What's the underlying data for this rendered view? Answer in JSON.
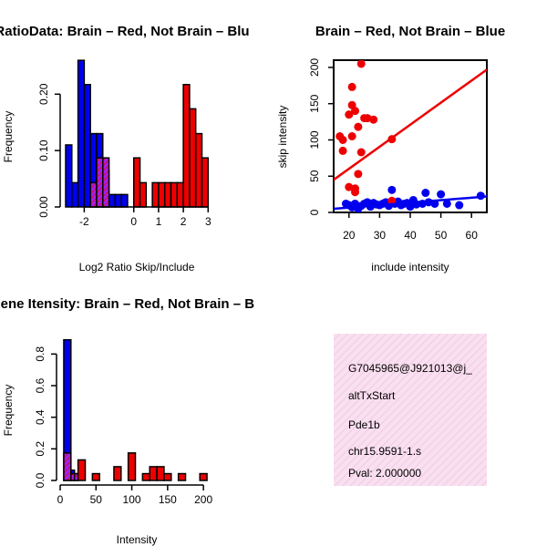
{
  "colors": {
    "brain": "#ee0000",
    "not_brain": "#0000ee",
    "overlap": "#a020f0",
    "info_bg": "#f9e0f0",
    "info_stripe": "#f2c9e2",
    "pval": "#aa0000"
  },
  "chart_data": [
    {
      "id": "ratio-hist",
      "type": "histogram",
      "title": "RatioData: Brain – Red, Not Brain – Blu",
      "xlabel": "Log2 Ratio Skip/Include",
      "ylabel": "Frequency",
      "xlim": [
        -2.75,
        3.1
      ],
      "ylim": [
        0,
        0.27
      ],
      "xticks": [
        -2,
        0,
        1,
        2,
        3
      ],
      "xtick_labels": [
        "-2",
        "0",
        "1",
        "2",
        "3"
      ],
      "yticks": [
        0.0,
        0.1,
        0.2
      ],
      "ytick_labels": [
        "0.00",
        "0.10",
        "0.20"
      ],
      "series": [
        {
          "name": "Not Brain",
          "color_key": "not_brain",
          "bins": [
            {
              "x0": -2.75,
              "x1": -2.5,
              "value": 0.11
            },
            {
              "x0": -2.5,
              "x1": -2.25,
              "value": 0.043
            },
            {
              "x0": -2.25,
              "x1": -2.0,
              "value": 0.26
            },
            {
              "x0": -2.0,
              "x1": -1.75,
              "value": 0.217
            },
            {
              "x0": -1.75,
              "x1": -1.5,
              "value": 0.13
            },
            {
              "x0": -1.5,
              "x1": -1.25,
              "value": 0.13
            },
            {
              "x0": -1.25,
              "x1": -1.0,
              "value": 0.065
            },
            {
              "x0": -1.0,
              "x1": -0.75,
              "value": 0.022
            },
            {
              "x0": -0.75,
              "x1": -0.5,
              "value": 0.022
            },
            {
              "x0": -0.5,
              "x1": -0.25,
              "value": 0.022
            }
          ]
        },
        {
          "name": "Brain",
          "color_key": "brain",
          "bins": [
            {
              "x0": -1.75,
              "x1": -1.5,
              "value": 0.043
            },
            {
              "x0": -1.5,
              "x1": -1.25,
              "value": 0.087
            },
            {
              "x0": -1.25,
              "x1": -1.0,
              "value": 0.087
            },
            {
              "x0": 0.0,
              "x1": 0.25,
              "value": 0.087
            },
            {
              "x0": 0.25,
              "x1": 0.5,
              "value": 0.043
            },
            {
              "x0": 0.75,
              "x1": 1.0,
              "value": 0.043
            },
            {
              "x0": 1.0,
              "x1": 1.25,
              "value": 0.043
            },
            {
              "x0": 1.25,
              "x1": 1.5,
              "value": 0.043
            },
            {
              "x0": 1.5,
              "x1": 1.75,
              "value": 0.043
            },
            {
              "x0": 1.75,
              "x1": 2.0,
              "value": 0.043
            },
            {
              "x0": 2.0,
              "x1": 2.25,
              "value": 0.217
            },
            {
              "x0": 2.25,
              "x1": 2.5,
              "value": 0.174
            },
            {
              "x0": 2.5,
              "x1": 2.75,
              "value": 0.13
            },
            {
              "x0": 2.75,
              "x1": 3.0,
              "value": 0.087
            }
          ]
        }
      ]
    },
    {
      "id": "scatter",
      "type": "scatter",
      "title": "Brain – Red, Not Brain – Blue",
      "xlabel": "include intensity",
      "ylabel": "skip intensity",
      "xlim": [
        15,
        65
      ],
      "ylim": [
        0,
        210
      ],
      "xticks": [
        20,
        30,
        40,
        50,
        60
      ],
      "yticks": [
        0,
        50,
        100,
        150,
        200
      ],
      "series": [
        {
          "name": "Brain",
          "color_key": "brain",
          "points": [
            [
              17,
              105
            ],
            [
              18,
              100
            ],
            [
              18,
              85
            ],
            [
              20,
              135
            ],
            [
              20,
              35
            ],
            [
              21,
              173
            ],
            [
              21,
              148
            ],
            [
              21,
              105
            ],
            [
              22,
              33
            ],
            [
              22,
              28
            ],
            [
              22,
              140
            ],
            [
              23,
              118
            ],
            [
              23,
              53
            ],
            [
              24,
              205
            ],
            [
              24,
              83
            ],
            [
              25,
              130
            ],
            [
              26,
              130
            ],
            [
              28,
              128
            ],
            [
              34,
              101
            ],
            [
              34,
              16
            ]
          ],
          "fit": {
            "x0": 15,
            "y0": 45,
            "x1": 65,
            "y1": 197
          }
        },
        {
          "name": "Not Brain",
          "color_key": "not_brain",
          "points": [
            [
              19,
              12
            ],
            [
              20,
              10
            ],
            [
              21,
              7
            ],
            [
              22,
              12
            ],
            [
              23,
              5
            ],
            [
              24,
              9
            ],
            [
              25,
              12
            ],
            [
              26,
              14
            ],
            [
              27,
              8
            ],
            [
              28,
              13
            ],
            [
              29,
              11
            ],
            [
              30,
              10
            ],
            [
              31,
              12
            ],
            [
              32,
              14
            ],
            [
              33,
              9
            ],
            [
              34,
              31
            ],
            [
              35,
              12
            ],
            [
              36,
              15
            ],
            [
              37,
              10
            ],
            [
              38,
              12
            ],
            [
              39,
              13
            ],
            [
              40,
              8
            ],
            [
              41,
              17
            ],
            [
              42,
              11
            ],
            [
              44,
              12
            ],
            [
              45,
              27
            ],
            [
              46,
              14
            ],
            [
              48,
              12
            ],
            [
              50,
              25
            ],
            [
              52,
              12
            ],
            [
              56,
              10
            ],
            [
              63,
              23
            ]
          ],
          "fit": {
            "x0": 15,
            "y0": 5,
            "x1": 65,
            "y1": 22
          }
        }
      ]
    },
    {
      "id": "intensity-hist",
      "type": "histogram",
      "title": "Gene Itensity: Brain – Red, Not Brain – B",
      "xlabel": "Intensity",
      "ylabel": "Frequency",
      "xlim": [
        0,
        210
      ],
      "ylim": [
        0,
        0.9
      ],
      "xticks": [
        0,
        50,
        100,
        150,
        200
      ],
      "xtick_labels": [
        "0",
        "50",
        "100",
        "150",
        "200"
      ],
      "yticks": [
        0.0,
        0.2,
        0.4,
        0.6,
        0.8
      ],
      "ytick_labels": [
        "0.0",
        "0.2",
        "0.4",
        "0.6",
        "0.8"
      ],
      "series": [
        {
          "name": "Not Brain",
          "color_key": "not_brain",
          "bins": [
            {
              "x0": 5,
              "x1": 15,
              "value": 0.89
            },
            {
              "x0": 15,
              "x1": 20,
              "value": 0.065
            },
            {
              "x0": 20,
              "x1": 25,
              "value": 0.043
            }
          ]
        },
        {
          "name": "Brain",
          "color_key": "brain",
          "bins": [
            {
              "x0": 5,
              "x1": 15,
              "value": 0.174
            },
            {
              "x0": 15,
              "x1": 20,
              "value": 0.043
            },
            {
              "x0": 20,
              "x1": 25,
              "value": 0.043
            },
            {
              "x0": 25,
              "x1": 35,
              "value": 0.13
            },
            {
              "x0": 45,
              "x1": 55,
              "value": 0.043
            },
            {
              "x0": 75,
              "x1": 85,
              "value": 0.087
            },
            {
              "x0": 95,
              "x1": 105,
              "value": 0.174
            },
            {
              "x0": 115,
              "x1": 125,
              "value": 0.043
            },
            {
              "x0": 125,
              "x1": 135,
              "value": 0.087
            },
            {
              "x0": 135,
              "x1": 145,
              "value": 0.087
            },
            {
              "x0": 145,
              "x1": 155,
              "value": 0.043
            },
            {
              "x0": 165,
              "x1": 175,
              "value": 0.043
            },
            {
              "x0": 195,
              "x1": 205,
              "value": 0.043
            }
          ]
        }
      ]
    }
  ],
  "info": {
    "probe_id": "G7045965@J921013@j_",
    "event_type": "altTxStart",
    "gene": "Pde1b",
    "location": "chr15.9591-1.s",
    "pval": "Pval: 2.000000"
  }
}
